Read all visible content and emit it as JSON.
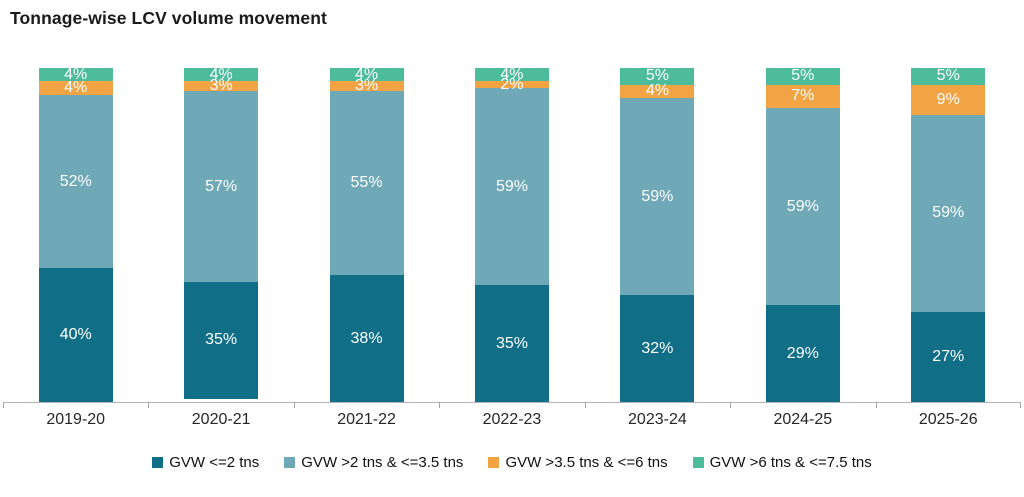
{
  "header": {
    "title": "Tonnage-wise LCV volume movement"
  },
  "chart_data": {
    "type": "bar",
    "variant": "stacked-100-percent-column",
    "title": "Tonnage-wise LCV volume movement",
    "categories": [
      "2019-20",
      "2020-21",
      "2021-22",
      "2022-23",
      "2023-24",
      "2024-25",
      "2025-26"
    ],
    "series": [
      {
        "name": "GVW <=2 tns",
        "color": "#116e87",
        "values": [
          40,
          35,
          38,
          35,
          32,
          29,
          27
        ]
      },
      {
        "name": "GVW >2 tns & <=3.5 tns",
        "color": "#6fa9b8",
        "values": [
          52,
          57,
          55,
          59,
          59,
          59,
          59
        ]
      },
      {
        "name": "GVW >3.5 tns & <=6 tns",
        "color": "#f2a444",
        "values": [
          4,
          3,
          3,
          2,
          4,
          7,
          9
        ]
      },
      {
        "name": "GVW >6 tns & <=7.5 tns",
        "color": "#4cbc9a",
        "values": [
          4,
          4,
          4,
          4,
          5,
          5,
          5
        ]
      }
    ],
    "value_suffix": "%",
    "data_labels": true,
    "data_label_color": "#ffffff",
    "xlabel": "",
    "ylabel": "",
    "ylim": [
      0,
      100
    ],
    "grid": false,
    "legend_position": "bottom",
    "axis_line_color": "#b3b3b3",
    "background_color": "#ffffff"
  }
}
